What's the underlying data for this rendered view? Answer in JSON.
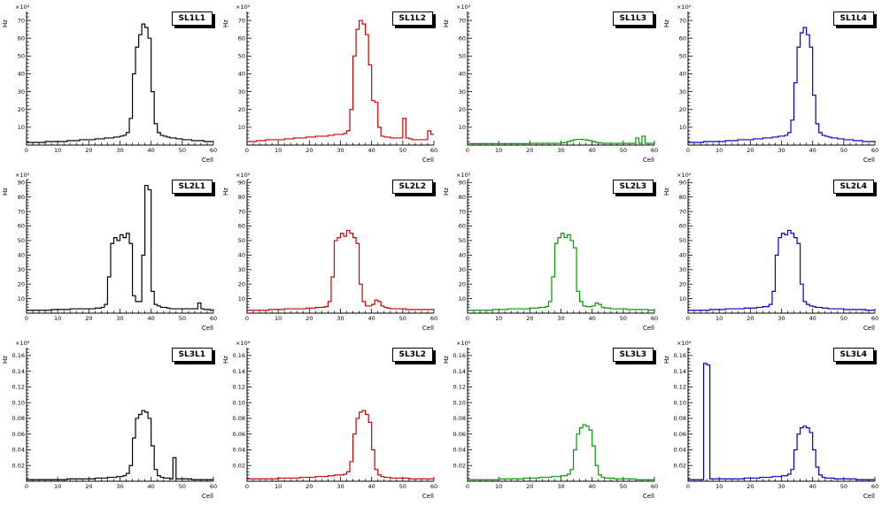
{
  "page": {
    "background": "#ffffff"
  },
  "axis_common": {
    "x_label": "Cell",
    "y_label": "Hz",
    "x_ticks": [
      0,
      10,
      20,
      30,
      40,
      50,
      60
    ]
  },
  "chart_data": [
    {
      "type": "line",
      "style": "histogram-step",
      "title": "SL1L1",
      "color": "#000000",
      "xlabel": "Cell",
      "ylabel": "Hz",
      "scale_label": "×10²",
      "xlim": [
        0,
        60
      ],
      "ylim": [
        0,
        75
      ],
      "ytick_step": 10,
      "ydecimals": 0,
      "values": [
        1.5,
        1.5,
        1.5,
        1.5,
        1.5,
        1.5,
        2,
        2,
        2,
        2,
        2,
        2,
        2,
        2.5,
        2.5,
        2.5,
        2.5,
        3,
        3,
        3,
        3,
        3,
        3.5,
        3.5,
        3.5,
        4,
        4,
        4,
        4.5,
        4.5,
        5,
        5.5,
        7,
        15,
        40,
        55,
        62,
        68,
        66,
        60,
        30,
        12,
        7,
        5.5,
        5,
        4.5,
        4,
        4,
        3.5,
        3.5,
        3,
        3,
        3,
        2.5,
        2.5,
        2.5,
        2.5,
        2,
        2,
        2
      ]
    },
    {
      "type": "line",
      "style": "histogram-step",
      "title": "SL1L2",
      "color": "#cc0000",
      "xlabel": "Cell",
      "ylabel": "Hz",
      "scale_label": "×10²",
      "xlim": [
        0,
        60
      ],
      "ylim": [
        0,
        75
      ],
      "ytick_step": 10,
      "ydecimals": 0,
      "values": [
        2,
        2,
        2,
        2.5,
        2.5,
        2.5,
        3,
        3,
        3,
        3,
        3,
        3,
        3.5,
        3.5,
        3.5,
        4,
        4,
        4,
        4,
        4.5,
        4.5,
        4.5,
        5,
        5,
        5,
        5,
        5.5,
        5.5,
        6,
        6,
        6,
        6.5,
        8,
        20,
        50,
        65,
        70,
        68,
        62,
        45,
        25,
        24,
        10,
        5,
        4.5,
        4.5,
        4,
        4,
        4,
        4,
        15,
        4,
        3.5,
        3,
        3,
        3,
        3,
        3,
        8,
        6
      ]
    },
    {
      "type": "line",
      "style": "histogram-step",
      "title": "SL1L3",
      "color": "#009900",
      "xlabel": "Cell",
      "ylabel": "Hz",
      "scale_label": "×10²",
      "xlim": [
        0,
        60
      ],
      "ylim": [
        0,
        75
      ],
      "ytick_step": 10,
      "ydecimals": 0,
      "values": [
        0.8,
        0.8,
        0.8,
        0.8,
        0.8,
        0.8,
        0.8,
        0.8,
        0.8,
        0.8,
        0.8,
        0.8,
        0.8,
        0.8,
        0.8,
        0.8,
        0.8,
        0.8,
        0.8,
        0.8,
        1,
        1,
        1,
        1,
        1,
        1,
        1,
        1,
        1,
        1,
        1.2,
        1.5,
        2,
        2.5,
        3,
        3.2,
        3.2,
        3,
        2.8,
        2.5,
        2,
        1.5,
        1.2,
        1,
        1,
        1,
        1,
        1,
        1,
        1,
        1,
        1,
        1,
        1,
        4,
        1,
        5,
        1,
        1,
        1
      ]
    },
    {
      "type": "line",
      "style": "histogram-step",
      "title": "SL1L4",
      "color": "#0000cc",
      "xlabel": "Cell",
      "ylabel": "Hz",
      "scale_label": "×10²",
      "xlim": [
        0,
        60
      ],
      "ylim": [
        0,
        75
      ],
      "ytick_step": 10,
      "ydecimals": 0,
      "values": [
        1.5,
        1.5,
        1.5,
        1.5,
        1.5,
        2,
        2,
        2,
        2,
        2,
        2,
        2,
        2.5,
        2.5,
        2.5,
        2.5,
        3,
        3,
        3,
        3,
        3,
        3.5,
        3.5,
        3.5,
        4,
        4,
        4,
        4.5,
        4.5,
        5,
        5,
        5.5,
        7,
        14,
        35,
        55,
        63,
        66,
        62,
        55,
        28,
        12,
        7,
        5.5,
        5,
        4.5,
        4,
        4,
        3.5,
        3.5,
        3,
        3,
        3,
        2.5,
        2.5,
        2.5,
        2,
        2,
        2,
        2
      ]
    },
    {
      "type": "line",
      "style": "histogram-step",
      "title": "SL2L1",
      "color": "#000000",
      "xlabel": "Cell",
      "ylabel": "Hz",
      "scale_label": "×10²",
      "xlim": [
        0,
        60
      ],
      "ylim": [
        0,
        92
      ],
      "ytick_step": 10,
      "ydecimals": 0,
      "values": [
        2,
        2,
        2,
        2,
        2,
        2,
        2,
        2,
        2.5,
        2.5,
        2.5,
        2.5,
        2.5,
        2.5,
        3,
        3,
        3,
        3,
        3,
        3,
        3,
        3,
        3.5,
        3.5,
        4,
        6,
        25,
        48,
        52,
        50,
        54,
        52,
        55,
        48,
        12,
        8,
        8,
        40,
        88,
        85,
        15,
        6,
        5,
        4,
        4,
        3.5,
        3,
        3,
        3,
        3,
        3,
        3,
        3,
        3,
        3,
        7,
        3,
        2.5,
        2.5,
        2
      ]
    },
    {
      "type": "line",
      "style": "histogram-step",
      "title": "SL2L2",
      "color": "#cc0000",
      "xlabel": "Cell",
      "ylabel": "Hz",
      "scale_label": "×10²",
      "xlim": [
        0,
        60
      ],
      "ylim": [
        0,
        92
      ],
      "ytick_step": 10,
      "ydecimals": 0,
      "values": [
        2,
        2,
        2,
        2,
        2,
        2,
        2,
        2.5,
        2.5,
        2.5,
        2.5,
        2.5,
        3,
        3,
        3,
        3,
        3,
        3,
        3,
        3.5,
        3.5,
        3.5,
        4,
        4,
        4,
        4.5,
        8,
        25,
        50,
        52,
        55,
        53,
        57,
        55,
        52,
        48,
        20,
        8,
        5,
        5,
        6,
        9,
        8,
        5,
        4,
        3.5,
        3,
        3,
        3,
        3,
        3,
        2.5,
        2.5,
        2.5,
        2.5,
        2.5,
        2.5,
        2.5,
        2.5,
        2.5
      ]
    },
    {
      "type": "line",
      "style": "histogram-step",
      "title": "SL2L3",
      "color": "#009900",
      "xlabel": "Cell",
      "ylabel": "Hz",
      "scale_label": "×10²",
      "xlim": [
        0,
        60
      ],
      "ylim": [
        0,
        92
      ],
      "ytick_step": 10,
      "ydecimals": 0,
      "values": [
        2,
        2,
        2,
        2,
        2,
        2,
        2,
        2,
        2.5,
        2.5,
        2.5,
        2.5,
        2.5,
        3,
        3,
        3,
        3,
        3,
        3,
        3,
        3.5,
        3.5,
        3.5,
        4,
        4,
        4.5,
        8,
        25,
        48,
        52,
        55,
        52,
        54,
        50,
        45,
        15,
        8,
        5,
        4.5,
        4.5,
        5,
        7,
        6,
        4,
        3.5,
        3.5,
        3,
        3,
        3,
        3,
        3,
        2.5,
        2.5,
        2.5,
        2.5,
        2.5,
        2.5,
        2.5,
        2,
        2
      ]
    },
    {
      "type": "line",
      "style": "histogram-step",
      "title": "SL2L4",
      "color": "#0000cc",
      "xlabel": "Cell",
      "ylabel": "Hz",
      "scale_label": "×10²",
      "xlim": [
        0,
        60
      ],
      "ylim": [
        0,
        92
      ],
      "ytick_step": 10,
      "ydecimals": 0,
      "values": [
        2,
        2,
        2,
        2,
        2,
        2,
        2,
        2.5,
        2.5,
        2.5,
        2.5,
        2.5,
        3,
        3,
        3,
        3,
        3,
        3,
        3.5,
        3.5,
        3.5,
        3.5,
        4,
        4,
        4.5,
        4.5,
        6,
        15,
        40,
        52,
        55,
        54,
        57,
        55,
        52,
        48,
        20,
        8,
        6,
        5,
        4.5,
        4,
        4,
        3.5,
        3.5,
        3,
        3,
        3,
        3,
        3,
        2.5,
        2.5,
        2.5,
        2.5,
        2.5,
        2.5,
        2.5,
        2,
        2,
        2
      ]
    },
    {
      "type": "line",
      "style": "histogram-step",
      "title": "SL3L1",
      "color": "#000000",
      "xlabel": "Cell",
      "ylabel": "Hz",
      "scale_label": "×10⁶",
      "xlim": [
        0,
        60
      ],
      "ylim": [
        0,
        0.17
      ],
      "ytick_step": 0.02,
      "ydecimals": 2,
      "values": [
        0.002,
        0.002,
        0.002,
        0.002,
        0.002,
        0.002,
        0.002,
        0.002,
        0.002,
        0.002,
        0.002,
        0.002,
        0.002,
        0.003,
        0.003,
        0.003,
        0.003,
        0.003,
        0.003,
        0.003,
        0.003,
        0.003,
        0.004,
        0.004,
        0.004,
        0.004,
        0.005,
        0.005,
        0.005,
        0.006,
        0.006,
        0.007,
        0.01,
        0.02,
        0.055,
        0.08,
        0.085,
        0.09,
        0.088,
        0.08,
        0.045,
        0.015,
        0.007,
        0.005,
        0.004,
        0.004,
        0.003,
        0.03,
        0.003,
        0.003,
        0.003,
        0.003,
        0.003,
        0.002,
        0.002,
        0.002,
        0.002,
        0.002,
        0.002,
        0.002
      ]
    },
    {
      "type": "line",
      "style": "histogram-step",
      "title": "SL3L2",
      "color": "#cc0000",
      "xlabel": "Cell",
      "ylabel": "Hz",
      "scale_label": "×10⁶",
      "xlim": [
        0,
        60
      ],
      "ylim": [
        0,
        0.17
      ],
      "ytick_step": 0.02,
      "ydecimals": 2,
      "values": [
        0.003,
        0.003,
        0.003,
        0.003,
        0.003,
        0.003,
        0.003,
        0.003,
        0.003,
        0.003,
        0.004,
        0.004,
        0.004,
        0.004,
        0.004,
        0.004,
        0.004,
        0.005,
        0.005,
        0.005,
        0.005,
        0.005,
        0.006,
        0.006,
        0.006,
        0.006,
        0.007,
        0.007,
        0.008,
        0.008,
        0.008,
        0.009,
        0.012,
        0.025,
        0.06,
        0.08,
        0.088,
        0.09,
        0.085,
        0.075,
        0.04,
        0.015,
        0.008,
        0.006,
        0.005,
        0.005,
        0.004,
        0.004,
        0.004,
        0.004,
        0.004,
        0.004,
        0.003,
        0.003,
        0.003,
        0.003,
        0.003,
        0.003,
        0.003,
        0.003
      ]
    },
    {
      "type": "line",
      "style": "histogram-step",
      "title": "SL3L3",
      "color": "#009900",
      "xlabel": "Cell",
      "ylabel": "Hz",
      "scale_label": "×10⁶",
      "xlim": [
        0,
        60
      ],
      "ylim": [
        0,
        0.17
      ],
      "ytick_step": 0.02,
      "ydecimals": 2,
      "values": [
        0.002,
        0.002,
        0.002,
        0.002,
        0.002,
        0.002,
        0.002,
        0.002,
        0.002,
        0.002,
        0.003,
        0.003,
        0.003,
        0.003,
        0.003,
        0.003,
        0.003,
        0.003,
        0.004,
        0.004,
        0.004,
        0.004,
        0.004,
        0.005,
        0.005,
        0.005,
        0.005,
        0.006,
        0.006,
        0.006,
        0.007,
        0.007,
        0.009,
        0.015,
        0.04,
        0.06,
        0.068,
        0.072,
        0.07,
        0.065,
        0.045,
        0.02,
        0.008,
        0.005,
        0.004,
        0.004,
        0.004,
        0.003,
        0.003,
        0.003,
        0.003,
        0.003,
        0.003,
        0.003,
        0.002,
        0.002,
        0.002,
        0.002,
        0.002,
        0.002
      ]
    },
    {
      "type": "line",
      "style": "histogram-step",
      "title": "SL3L4",
      "color": "#0000cc",
      "xlabel": "Cell",
      "ylabel": "Hz",
      "scale_label": "×10⁶",
      "xlim": [
        0,
        60
      ],
      "ylim": [
        0,
        0.17
      ],
      "ytick_step": 0.02,
      "ydecimals": 2,
      "values": [
        0.002,
        0.002,
        0.002,
        0.002,
        0.002,
        0.15,
        0.148,
        0.003,
        0.003,
        0.003,
        0.003,
        0.003,
        0.003,
        0.003,
        0.003,
        0.003,
        0.003,
        0.003,
        0.004,
        0.004,
        0.004,
        0.004,
        0.004,
        0.005,
        0.005,
        0.005,
        0.005,
        0.006,
        0.006,
        0.006,
        0.007,
        0.007,
        0.009,
        0.015,
        0.04,
        0.06,
        0.068,
        0.07,
        0.068,
        0.062,
        0.04,
        0.018,
        0.008,
        0.005,
        0.004,
        0.004,
        0.004,
        0.003,
        0.003,
        0.003,
        0.003,
        0.003,
        0.003,
        0.003,
        0.002,
        0.002,
        0.002,
        0.002,
        0.002,
        0.002
      ]
    }
  ]
}
